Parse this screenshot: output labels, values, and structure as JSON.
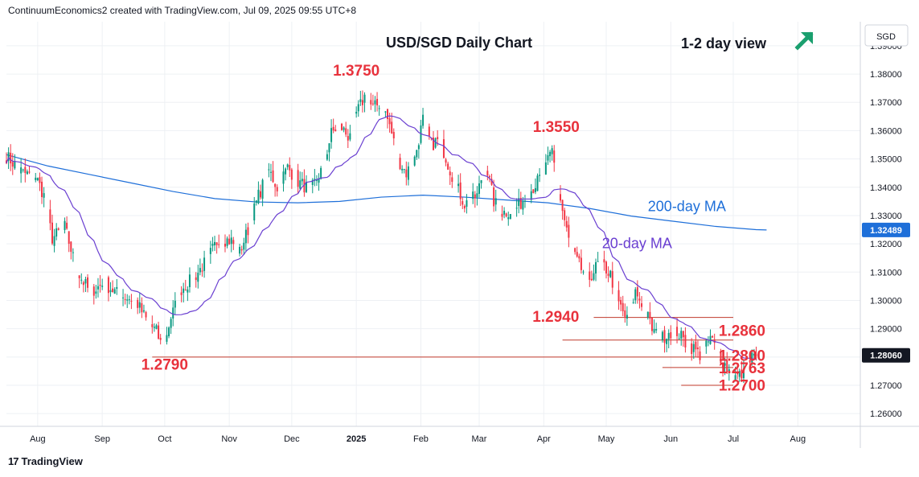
{
  "header": {
    "text": "ContinuumEconomics2 created with TradingView.com, Jul 09, 2025 09:55 UTC+8"
  },
  "footer": {
    "logo": "17",
    "brand": "TradingView"
  },
  "chart_data": {
    "type": "candlestick",
    "title": "USD/SGD Daily Chart",
    "view_label": "1-2 day view",
    "view_direction": "up",
    "currency": "SGD",
    "current_price": 1.2806,
    "current_price_label": "1.28060",
    "ma200_price_label": "1.32489",
    "ylim": [
      1.2555,
      1.3985
    ],
    "y_ticks": [
      1.26,
      1.27,
      1.28,
      1.29,
      1.3,
      1.31,
      1.32,
      1.33,
      1.34,
      1.35,
      1.36,
      1.37,
      1.38,
      1.39
    ],
    "y_tick_labels": [
      "1.26000",
      "1.27000",
      "1.28000",
      "1.29000",
      "1.30000",
      "1.31000",
      "1.32000",
      "1.33000",
      "1.34000",
      "1.35000",
      "1.36000",
      "1.37000",
      "1.38000",
      "1.39000"
    ],
    "x_ticks": [
      {
        "label": "Aug",
        "day": 15
      },
      {
        "label": "Sep",
        "day": 46
      },
      {
        "label": "Oct",
        "day": 76
      },
      {
        "label": "Nov",
        "day": 107
      },
      {
        "label": "Dec",
        "day": 137
      },
      {
        "label": "2025",
        "day": 168,
        "bold": true
      },
      {
        "label": "Feb",
        "day": 199
      },
      {
        "label": "Mar",
        "day": 227
      },
      {
        "label": "Apr",
        "day": 258
      },
      {
        "label": "May",
        "day": 288
      },
      {
        "label": "Jun",
        "day": 319
      },
      {
        "label": "Jul",
        "day": 349
      },
      {
        "label": "Aug",
        "day": 380
      }
    ],
    "x_range_days": [
      0,
      410
    ],
    "anchors": [
      {
        "day": 0,
        "price": 1.351
      },
      {
        "day": 8,
        "price": 1.345
      },
      {
        "day": 14,
        "price": 1.344
      },
      {
        "day": 18,
        "price": 1.337
      },
      {
        "day": 22,
        "price": 1.322
      },
      {
        "day": 28,
        "price": 1.326
      },
      {
        "day": 34,
        "price": 1.31
      },
      {
        "day": 40,
        "price": 1.303
      },
      {
        "day": 47,
        "price": 1.306
      },
      {
        "day": 54,
        "price": 1.302
      },
      {
        "day": 62,
        "price": 1.3
      },
      {
        "day": 68,
        "price": 1.292
      },
      {
        "day": 72,
        "price": 1.289
      },
      {
        "day": 75,
        "price": 1.283
      },
      {
        "day": 79,
        "price": 1.294
      },
      {
        "day": 84,
        "price": 1.304
      },
      {
        "day": 90,
        "price": 1.308
      },
      {
        "day": 96,
        "price": 1.314
      },
      {
        "day": 102,
        "price": 1.322
      },
      {
        "day": 108,
        "price": 1.321
      },
      {
        "day": 112,
        "price": 1.317
      },
      {
        "day": 116,
        "price": 1.325
      },
      {
        "day": 121,
        "price": 1.337
      },
      {
        "day": 126,
        "price": 1.346
      },
      {
        "day": 130,
        "price": 1.34
      },
      {
        "day": 135,
        "price": 1.347
      },
      {
        "day": 140,
        "price": 1.342
      },
      {
        "day": 146,
        "price": 1.339
      },
      {
        "day": 152,
        "price": 1.347
      },
      {
        "day": 156,
        "price": 1.359
      },
      {
        "day": 160,
        "price": 1.362
      },
      {
        "day": 164,
        "price": 1.358
      },
      {
        "day": 168,
        "price": 1.366
      },
      {
        "day": 172,
        "price": 1.372
      },
      {
        "day": 176,
        "price": 1.368
      },
      {
        "day": 180,
        "price": 1.37
      },
      {
        "day": 184,
        "price": 1.362
      },
      {
        "day": 188,
        "price": 1.35
      },
      {
        "day": 192,
        "price": 1.345
      },
      {
        "day": 196,
        "price": 1.35
      },
      {
        "day": 200,
        "price": 1.364
      },
      {
        "day": 204,
        "price": 1.355
      },
      {
        "day": 208,
        "price": 1.357
      },
      {
        "day": 214,
        "price": 1.344
      },
      {
        "day": 220,
        "price": 1.334
      },
      {
        "day": 226,
        "price": 1.337
      },
      {
        "day": 230,
        "price": 1.349
      },
      {
        "day": 234,
        "price": 1.335
      },
      {
        "day": 238,
        "price": 1.331
      },
      {
        "day": 244,
        "price": 1.332
      },
      {
        "day": 250,
        "price": 1.337
      },
      {
        "day": 254,
        "price": 1.341
      },
      {
        "day": 258,
        "price": 1.345
      },
      {
        "day": 262,
        "price": 1.353
      },
      {
        "day": 265,
        "price": 1.339
      },
      {
        "day": 268,
        "price": 1.328
      },
      {
        "day": 271,
        "price": 1.318
      },
      {
        "day": 276,
        "price": 1.311
      },
      {
        "day": 280,
        "price": 1.308
      },
      {
        "day": 285,
        "price": 1.314
      },
      {
        "day": 290,
        "price": 1.309
      },
      {
        "day": 294,
        "price": 1.299
      },
      {
        "day": 298,
        "price": 1.293
      },
      {
        "day": 302,
        "price": 1.303
      },
      {
        "day": 306,
        "price": 1.298
      },
      {
        "day": 310,
        "price": 1.29
      },
      {
        "day": 314,
        "price": 1.286
      },
      {
        "day": 318,
        "price": 1.289
      },
      {
        "day": 322,
        "price": 1.289
      },
      {
        "day": 326,
        "price": 1.285
      },
      {
        "day": 330,
        "price": 1.283
      },
      {
        "day": 334,
        "price": 1.28
      },
      {
        "day": 338,
        "price": 1.287
      },
      {
        "day": 342,
        "price": 1.281
      },
      {
        "day": 346,
        "price": 1.276
      },
      {
        "day": 350,
        "price": 1.273
      },
      {
        "day": 354,
        "price": 1.274
      },
      {
        "day": 356,
        "price": 1.277
      },
      {
        "day": 358,
        "price": 1.28
      },
      {
        "day": 360,
        "price": 1.2806
      }
    ],
    "ma200": [
      {
        "day": 0,
        "price": 1.3515
      },
      {
        "day": 20,
        "price": 1.3475
      },
      {
        "day": 40,
        "price": 1.3445
      },
      {
        "day": 60,
        "price": 1.3415
      },
      {
        "day": 80,
        "price": 1.3385
      },
      {
        "day": 100,
        "price": 1.336
      },
      {
        "day": 120,
        "price": 1.3348
      },
      {
        "day": 140,
        "price": 1.3345
      },
      {
        "day": 160,
        "price": 1.335
      },
      {
        "day": 180,
        "price": 1.3365
      },
      {
        "day": 200,
        "price": 1.3372
      },
      {
        "day": 220,
        "price": 1.3365
      },
      {
        "day": 240,
        "price": 1.3355
      },
      {
        "day": 260,
        "price": 1.3345
      },
      {
        "day": 280,
        "price": 1.3325
      },
      {
        "day": 300,
        "price": 1.3298
      },
      {
        "day": 320,
        "price": 1.328
      },
      {
        "day": 340,
        "price": 1.3262
      },
      {
        "day": 360,
        "price": 1.325
      },
      {
        "day": 365,
        "price": 1.3249
      }
    ],
    "ma_labels": [
      {
        "text": "200-day MA",
        "color": "#1e6fd9",
        "day": 308,
        "price": 1.3315
      },
      {
        "text": "20-day MA",
        "color": "#6a3fd1",
        "day": 286,
        "price": 1.3185
      }
    ],
    "annotations": [
      {
        "text": "1.3750",
        "day": 168,
        "price": 1.3795,
        "align": "middle"
      },
      {
        "text": "1.3550",
        "day": 264,
        "price": 1.3595,
        "align": "middle"
      },
      {
        "text": "1.2790",
        "day": 76,
        "price": 1.2755,
        "align": "middle"
      },
      {
        "text": "1.2940",
        "day": 275,
        "price": 1.2925,
        "align": "end"
      },
      {
        "text": "1.2860",
        "day": 342,
        "price": 1.2875,
        "align": "start"
      },
      {
        "text": "1.2800",
        "day": 342,
        "price": 1.2787,
        "align": "start"
      },
      {
        "text": "1.2763",
        "day": 342,
        "price": 1.2742,
        "align": "start"
      },
      {
        "text": "1.2700",
        "day": 342,
        "price": 1.2682,
        "align": "start"
      }
    ],
    "levels": [
      {
        "price": 1.28,
        "from_day": 70,
        "to_day": 350
      },
      {
        "price": 1.294,
        "from_day": 282,
        "to_day": 349
      },
      {
        "price": 1.286,
        "from_day": 267,
        "to_day": 349
      },
      {
        "price": 1.2763,
        "from_day": 315,
        "to_day": 349
      },
      {
        "price": 1.27,
        "from_day": 324,
        "to_day": 349
      }
    ],
    "colors": {
      "up": "#089981",
      "down": "#f23645",
      "ma20": "#6a3fd1",
      "ma200": "#1e6fd9",
      "annotation": "#e8323c",
      "arrow": "#1a9f6e",
      "grid": "#eef0f4",
      "level": "#c0392b"
    },
    "grid": true
  }
}
